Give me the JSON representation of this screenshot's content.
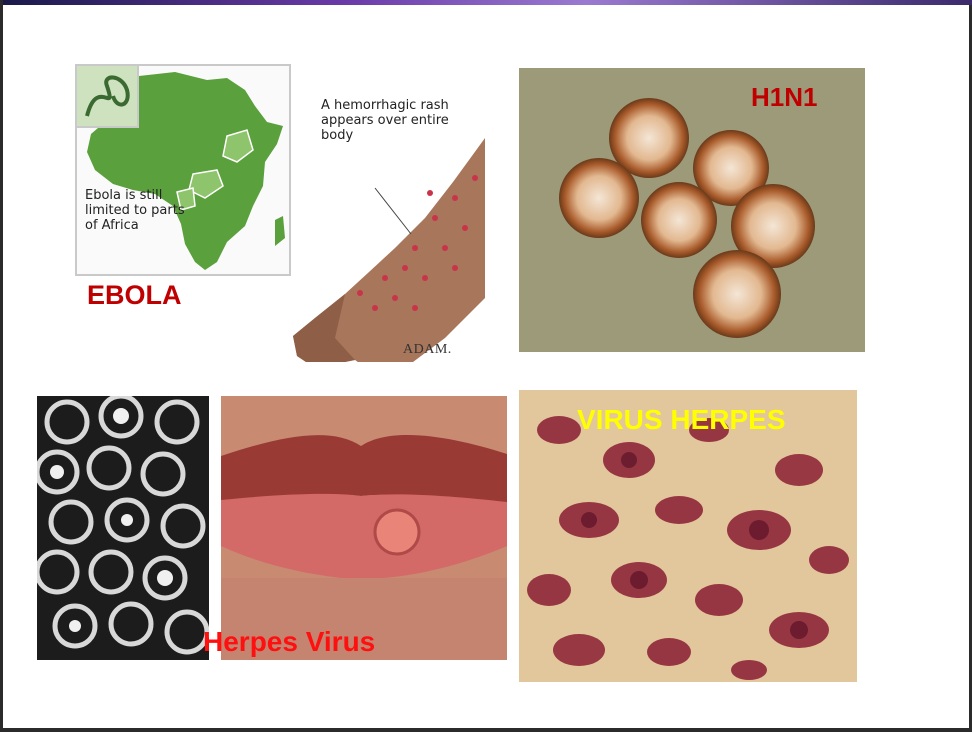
{
  "colors": {
    "label_dark_red": "#c00000",
    "label_red": "#ff1010",
    "label_yellow": "#ffff00",
    "africa_green": "#5aa03c"
  },
  "panels": {
    "ebola": {
      "label": "EBOLA",
      "map_note": "Ebola is still limited to parts of Africa",
      "rash_note": "A hemorrhagic rash appears over entire body",
      "credit": "ADAM."
    },
    "h1n1": {
      "label": "H1N1"
    },
    "herpes": {
      "label": "Herpes Virus"
    },
    "virus_herpes": {
      "label": "VIRUS HERPES"
    }
  }
}
